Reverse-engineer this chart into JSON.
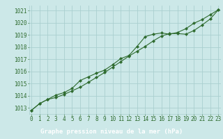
{
  "x": [
    0,
    1,
    2,
    3,
    4,
    5,
    6,
    7,
    8,
    9,
    10,
    11,
    12,
    13,
    14,
    15,
    16,
    17,
    18,
    19,
    20,
    21,
    22,
    23
  ],
  "line1": [
    1012.8,
    1013.35,
    1013.7,
    1013.85,
    1014.1,
    1014.4,
    1014.7,
    1015.1,
    1015.5,
    1015.9,
    1016.35,
    1016.8,
    1017.25,
    1017.65,
    1018.05,
    1018.5,
    1018.9,
    1019.1,
    1019.1,
    1019.05,
    1019.35,
    1019.8,
    1020.3,
    1021.05
  ],
  "line2": [
    1012.8,
    1013.35,
    1013.7,
    1014.05,
    1014.25,
    1014.6,
    1015.25,
    1015.55,
    1015.85,
    1016.1,
    1016.55,
    1017.05,
    1017.3,
    1018.05,
    1018.85,
    1019.05,
    1019.15,
    1019.05,
    1019.2,
    1019.5,
    1019.95,
    1020.25,
    1020.65,
    1021.05
  ],
  "line_color": "#2d6a2d",
  "bg_color": "#cce8e8",
  "grid_color": "#aacfcf",
  "footer_bg": "#2d6a2d",
  "footer_text": "Graphe pression niveau de la mer (hPa)",
  "footer_text_color": "#ffffff",
  "ylabel_values": [
    1013,
    1014,
    1015,
    1016,
    1017,
    1018,
    1019,
    1020,
    1021
  ],
  "ylim": [
    1012.5,
    1021.4
  ],
  "xlim": [
    -0.3,
    23.3
  ],
  "tick_fontsize": 5.5,
  "footer_fontsize": 6.5
}
